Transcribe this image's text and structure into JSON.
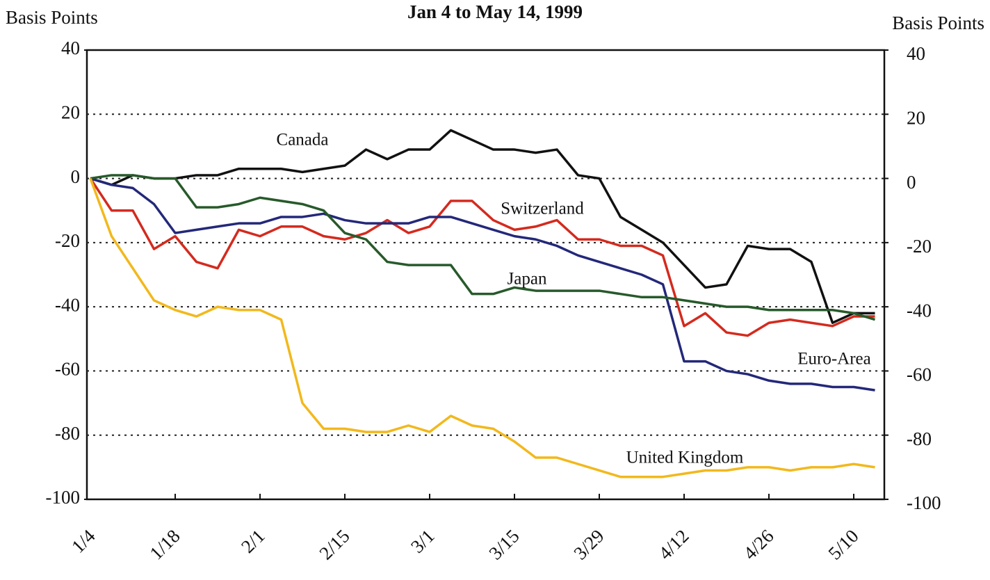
{
  "chart_data": {
    "type": "line",
    "title": "Jan 4 to May 14, 1999",
    "y_label": "Basis Points",
    "y2_label": "Basis Points",
    "categories": [
      "1/4",
      null,
      null,
      null,
      "1/18",
      null,
      null,
      null,
      "2/1",
      null,
      null,
      null,
      "2/15",
      null,
      null,
      null,
      "3/1",
      null,
      null,
      null,
      "3/15",
      null,
      null,
      null,
      "3/29",
      null,
      null,
      null,
      "4/12",
      null,
      null,
      null,
      "4/26",
      null,
      null,
      null,
      "5/10",
      null
    ],
    "series": [
      {
        "name": "Canada",
        "color": "#111111",
        "values": [
          0,
          -2,
          1,
          0,
          0,
          1,
          1,
          3,
          3,
          3,
          2,
          3,
          4,
          9,
          6,
          9,
          9,
          15,
          12,
          9,
          9,
          8,
          9,
          1,
          0,
          -12,
          -16,
          -20,
          -27,
          -34,
          -33,
          -21,
          -22,
          -22,
          -26,
          -45,
          -42,
          -42
        ]
      },
      {
        "name": "Switzerland",
        "color": "#d42a1e",
        "values": [
          0,
          -10,
          -10,
          -22,
          -18,
          -26,
          -28,
          -16,
          -18,
          -15,
          -15,
          -18,
          -19,
          -17,
          -13,
          -17,
          -15,
          -7,
          -7,
          -13,
          -16,
          -15,
          -13,
          -19,
          -19,
          -21,
          -21,
          -24,
          -46,
          -42,
          -48,
          -49,
          -45,
          -44,
          -45,
          -46,
          -43,
          -43
        ]
      },
      {
        "name": "Euro-Area",
        "color": "#23287a",
        "values": [
          0,
          -2,
          -3,
          -8,
          -17,
          -16,
          -15,
          -14,
          -14,
          -12,
          -12,
          -11,
          -13,
          -14,
          -14,
          -14,
          -12,
          -12,
          -14,
          -16,
          -18,
          -19,
          -21,
          -24,
          -26,
          -28,
          -30,
          -33,
          -57,
          -57,
          -60,
          -61,
          -63,
          -64,
          -64,
          -65,
          -65,
          -66
        ]
      },
      {
        "name": "Japan",
        "color": "#275a2a",
        "values": [
          0,
          1,
          1,
          0,
          0,
          -9,
          -9,
          -8,
          -6,
          -7,
          -8,
          -10,
          -17,
          -19,
          -26,
          -27,
          -27,
          -27,
          -36,
          -36,
          -34,
          -35,
          -35,
          -35,
          -35,
          -36,
          -37,
          -37,
          -38,
          -39,
          -40,
          -40,
          -41,
          -41,
          -41,
          -41,
          -42,
          -44
        ]
      },
      {
        "name": "United Kingdom",
        "color": "#f2b81c",
        "values": [
          0,
          -18,
          -28,
          -38,
          -41,
          -43,
          -40,
          -41,
          -41,
          -44,
          -70,
          -78,
          -78,
          -79,
          -79,
          -77,
          -79,
          -74,
          -77,
          -78,
          -82,
          -87,
          -87,
          -89,
          -91,
          -93,
          -93,
          -93,
          -92,
          -91,
          -91,
          -90,
          -90,
          -91,
          -90,
          -90,
          -89,
          -90
        ]
      }
    ],
    "ylim": [
      -100,
      40
    ],
    "yticks": [
      -100,
      -80,
      -60,
      -40,
      -20,
      0,
      20,
      40
    ],
    "y2lim": [
      -100,
      40
    ],
    "y2ticks": [
      -100,
      -80,
      -60,
      -40,
      -20,
      0,
      20,
      40
    ],
    "grid": true
  }
}
